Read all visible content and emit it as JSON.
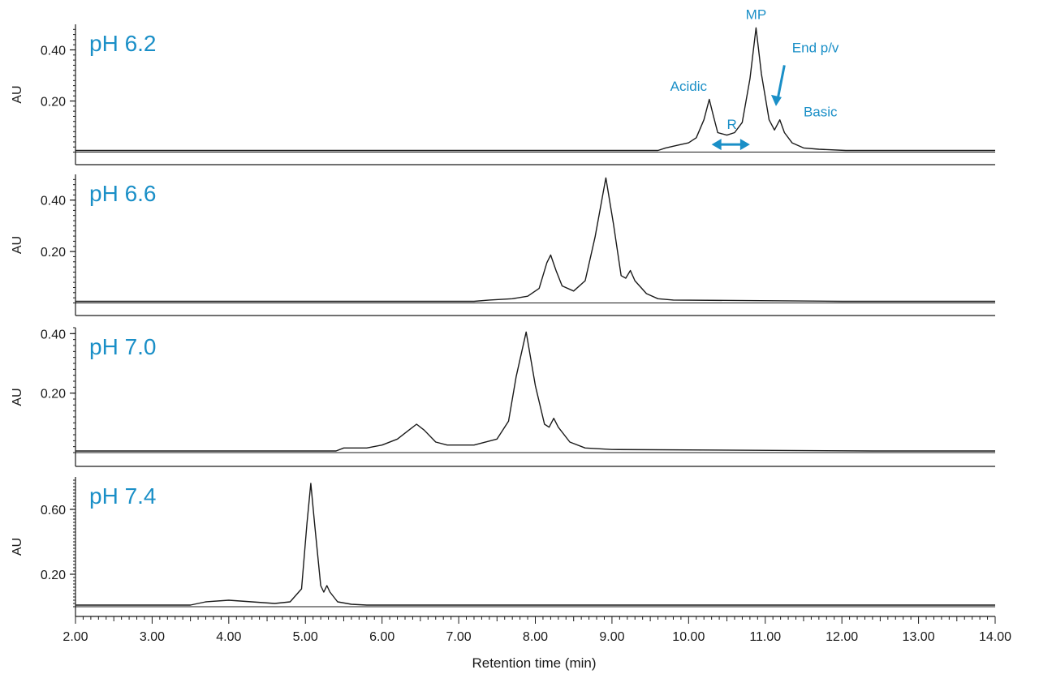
{
  "chart_data": {
    "type": "line",
    "xlabel": "Retention time (min)",
    "x_ticks": [
      "2.00",
      "3.00",
      "4.00",
      "5.00",
      "6.00",
      "7.00",
      "8.00",
      "9.00",
      "10.00",
      "11.00",
      "12.00",
      "13.00",
      "14.00"
    ],
    "xlim": [
      2.0,
      14.0
    ],
    "colors": {
      "trace": "#1a1a1a",
      "label": "#1a8fc7",
      "axis": "#1a1a1a"
    },
    "panels": [
      {
        "label": "pH 6.2",
        "ylabel": "AU",
        "ylim": [
          -0.03,
          0.5
        ],
        "y_ticks": [
          {
            "value": 0.2,
            "label": "0.20"
          },
          {
            "value": 0.4,
            "label": "0.40"
          }
        ],
        "baseline": 0.0,
        "points": [
          [
            2.0,
            0.0
          ],
          [
            9.6,
            0.0
          ],
          [
            9.7,
            0.01
          ],
          [
            9.85,
            0.02
          ],
          [
            10.0,
            0.03
          ],
          [
            10.1,
            0.05
          ],
          [
            10.2,
            0.12
          ],
          [
            10.27,
            0.2
          ],
          [
            10.32,
            0.14
          ],
          [
            10.38,
            0.07
          ],
          [
            10.5,
            0.06
          ],
          [
            10.6,
            0.07
          ],
          [
            10.7,
            0.11
          ],
          [
            10.8,
            0.28
          ],
          [
            10.88,
            0.48
          ],
          [
            10.95,
            0.3
          ],
          [
            11.05,
            0.12
          ],
          [
            11.12,
            0.08
          ],
          [
            11.19,
            0.12
          ],
          [
            11.25,
            0.07
          ],
          [
            11.35,
            0.03
          ],
          [
            11.5,
            0.01
          ],
          [
            11.7,
            0.005
          ],
          [
            12.05,
            0.0
          ],
          [
            14.0,
            0.0
          ]
        ],
        "annotations": [
          {
            "text": "MP",
            "x": 10.88,
            "y": 0.52
          },
          {
            "text": "Acidic",
            "x": 10.0,
            "y": 0.24
          },
          {
            "text": "R",
            "x": 10.5,
            "y": 0.09
          },
          {
            "text": "End p/v",
            "x": 11.35,
            "y": 0.39
          },
          {
            "text": "Basic",
            "x": 11.5,
            "y": 0.14
          }
        ]
      },
      {
        "label": "pH 6.6",
        "ylabel": "AU",
        "ylim": [
          -0.03,
          0.5
        ],
        "y_ticks": [
          {
            "value": 0.2,
            "label": "0.20"
          },
          {
            "value": 0.4,
            "label": "0.40"
          }
        ],
        "baseline": 0.0,
        "points": [
          [
            2.0,
            0.0
          ],
          [
            7.2,
            0.0
          ],
          [
            7.4,
            0.005
          ],
          [
            7.7,
            0.01
          ],
          [
            7.9,
            0.02
          ],
          [
            8.05,
            0.05
          ],
          [
            8.15,
            0.15
          ],
          [
            8.2,
            0.18
          ],
          [
            8.27,
            0.12
          ],
          [
            8.35,
            0.06
          ],
          [
            8.5,
            0.04
          ],
          [
            8.65,
            0.08
          ],
          [
            8.78,
            0.25
          ],
          [
            8.92,
            0.48
          ],
          [
            9.02,
            0.3
          ],
          [
            9.12,
            0.1
          ],
          [
            9.18,
            0.09
          ],
          [
            9.24,
            0.12
          ],
          [
            9.3,
            0.08
          ],
          [
            9.45,
            0.03
          ],
          [
            9.6,
            0.01
          ],
          [
            9.8,
            0.005
          ],
          [
            12.0,
            0.0
          ],
          [
            14.0,
            0.0
          ]
        ]
      },
      {
        "label": "pH 7.0",
        "ylabel": "AU",
        "ylim": [
          -0.03,
          0.42
        ],
        "y_ticks": [
          {
            "value": 0.2,
            "label": "0.20"
          },
          {
            "value": 0.4,
            "label": "0.40"
          }
        ],
        "baseline": 0.0,
        "points": [
          [
            2.0,
            0.0
          ],
          [
            5.4,
            0.0
          ],
          [
            5.5,
            0.01
          ],
          [
            5.8,
            0.01
          ],
          [
            6.0,
            0.02
          ],
          [
            6.2,
            0.04
          ],
          [
            6.35,
            0.07
          ],
          [
            6.45,
            0.09
          ],
          [
            6.55,
            0.07
          ],
          [
            6.7,
            0.03
          ],
          [
            6.85,
            0.02
          ],
          [
            7.2,
            0.02
          ],
          [
            7.5,
            0.04
          ],
          [
            7.65,
            0.1
          ],
          [
            7.75,
            0.25
          ],
          [
            7.88,
            0.4
          ],
          [
            8.0,
            0.22
          ],
          [
            8.12,
            0.09
          ],
          [
            8.18,
            0.08
          ],
          [
            8.24,
            0.11
          ],
          [
            8.3,
            0.08
          ],
          [
            8.45,
            0.03
          ],
          [
            8.65,
            0.01
          ],
          [
            9.0,
            0.005
          ],
          [
            12.4,
            0.0
          ],
          [
            14.0,
            0.0
          ]
        ]
      },
      {
        "label": "pH 7.4",
        "ylabel": "AU",
        "ylim": [
          -0.03,
          0.8
        ],
        "y_ticks": [
          {
            "value": 0.2,
            "label": "0.20"
          },
          {
            "value": 0.6,
            "label": "0.60"
          }
        ],
        "baseline": 0.0,
        "points": [
          [
            2.0,
            0.0
          ],
          [
            3.5,
            0.0
          ],
          [
            3.7,
            0.02
          ],
          [
            4.0,
            0.03
          ],
          [
            4.3,
            0.02
          ],
          [
            4.6,
            0.01
          ],
          [
            4.8,
            0.02
          ],
          [
            4.95,
            0.1
          ],
          [
            5.02,
            0.5
          ],
          [
            5.07,
            0.75
          ],
          [
            5.12,
            0.5
          ],
          [
            5.2,
            0.12
          ],
          [
            5.24,
            0.08
          ],
          [
            5.28,
            0.12
          ],
          [
            5.32,
            0.08
          ],
          [
            5.42,
            0.02
          ],
          [
            5.6,
            0.005
          ],
          [
            5.8,
            0.0
          ],
          [
            14.0,
            0.0
          ]
        ]
      }
    ]
  }
}
